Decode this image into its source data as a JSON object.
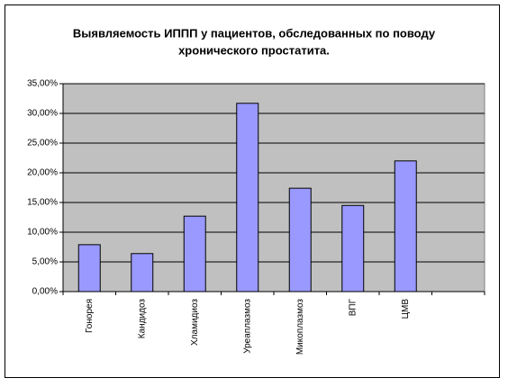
{
  "chart_data": {
    "type": "bar",
    "title": [
      "Выявляемость ИППП у пациентов, обследованных по поводу",
      "хронического простатита."
    ],
    "categories": [
      "Гонорея",
      "Кандидоз",
      "Хламидиоз",
      "Уреаплазмоз",
      "Микоплазмоз",
      "ВПГ",
      "ЦМВ",
      null
    ],
    "values": [
      7.9,
      6.4,
      12.7,
      31.7,
      17.4,
      14.5,
      22.0,
      null
    ],
    "color": "#9999ff",
    "ylim": [
      0,
      35
    ],
    "yticks": [
      {
        "value": 0,
        "label": "0,00%"
      },
      {
        "value": 5,
        "label": "5,00%"
      },
      {
        "value": 10,
        "label": "10,00%"
      },
      {
        "value": 15,
        "label": "15,00%"
      },
      {
        "value": 20,
        "label": "20,00%"
      },
      {
        "value": 25,
        "label": "25,00%"
      },
      {
        "value": 30,
        "label": "30,00%"
      },
      {
        "value": 35,
        "label": "35,00%"
      }
    ],
    "grid": true
  }
}
